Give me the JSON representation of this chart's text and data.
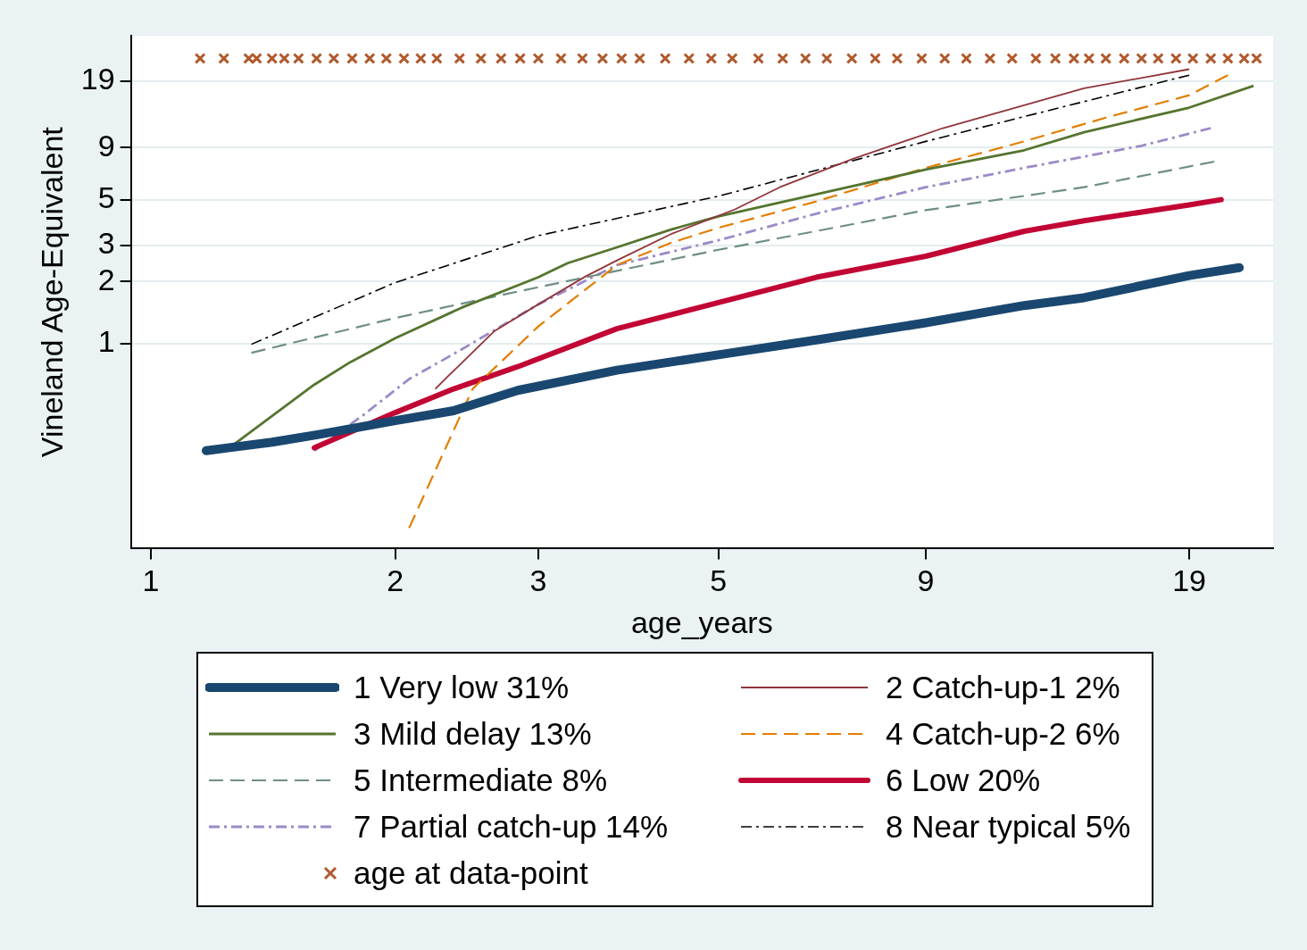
{
  "chart_data": {
    "type": "line",
    "xlabel": "age_years",
    "ylabel": "Vineland Age-Equivalent",
    "log": "xy",
    "xlim": [
      0.945,
      24.1
    ],
    "xticks": [
      1,
      2,
      3,
      5,
      9,
      19
    ],
    "ylim": [
      0.1,
      31.6
    ],
    "yticks": [
      1,
      2,
      3,
      5,
      9,
      19
    ],
    "grid": "y",
    "legend": "bottom",
    "series": [
      {
        "name": "1 Very low 31%",
        "color": "#1a476f",
        "line_style": "solid",
        "x": [
          1.17,
          1.41,
          1.61,
          2,
          2.36,
          2.83,
          3.75,
          5,
          6.6,
          9,
          11.9,
          14.1,
          19,
          21.9
        ],
        "values": [
          0.3,
          0.33,
          0.36,
          0.42,
          0.47,
          0.59,
          0.74,
          0.88,
          1.04,
          1.26,
          1.53,
          1.67,
          2.14,
          2.34
        ]
      },
      {
        "name": "2 Catch-up-1 2%",
        "color": "#90353b",
        "line_style": "solid",
        "x": [
          2.24,
          2.33,
          2.65,
          3,
          3.43,
          3.75,
          4.37,
          5.24,
          5.95,
          7.31,
          9.45,
          14.1,
          19
        ],
        "values": [
          0.6,
          0.7,
          1.15,
          1.55,
          2.12,
          2.54,
          3.41,
          4.5,
          5.77,
          7.92,
          11.2,
          17.5,
          21.7
        ]
      },
      {
        "name": "3 Mild delay 13%",
        "color": "#55752f",
        "line_style": "solid",
        "x": [
          1.25,
          1.59,
          1.76,
          2,
          2.42,
          3,
          3.26,
          3.75,
          4.37,
          5,
          6.6,
          9,
          11.9,
          14.1,
          19,
          22.8
        ],
        "values": [
          0.31,
          0.63,
          0.81,
          1.06,
          1.5,
          2.1,
          2.46,
          2.94,
          3.59,
          4.16,
          5.33,
          7.03,
          8.74,
          10.7,
          14.1,
          18
        ]
      },
      {
        "name": "4 Catch-up-2 6%",
        "color": "#e37e00",
        "line_style": "dashed",
        "x": [
          2.08,
          2.49,
          3,
          3.75,
          4.37,
          5,
          6.6,
          9,
          11.9,
          15,
          19,
          21.2
        ],
        "values": [
          0.126,
          0.6,
          1.21,
          2.41,
          3.09,
          3.66,
          4.92,
          7.17,
          9.65,
          12.6,
          16.2,
          20.3
        ]
      },
      {
        "name": "5 Intermediate 8%",
        "color": "#6e8e84",
        "line_style": "dashed",
        "x": [
          1.33,
          2,
          3,
          5,
          9,
          14.1,
          20.4
        ],
        "values": [
          0.9,
          1.33,
          1.88,
          2.86,
          4.46,
          5.77,
          7.69
        ]
      },
      {
        "name": "6 Low 20%",
        "color": "#c10534",
        "line_style": "solid",
        "x": [
          1.59,
          2,
          2.36,
          2.83,
          3.75,
          5,
          6.6,
          9,
          11.9,
          14.1,
          19,
          20.8
        ],
        "values": [
          0.31,
          0.46,
          0.6,
          0.77,
          1.18,
          1.58,
          2.1,
          2.66,
          3.52,
          3.96,
          4.73,
          5.02
        ]
      },
      {
        "name": "7 Partial catch-up 14%",
        "color": "#9c8ac7",
        "line_style": "dashdot",
        "x": [
          1.59,
          1.83,
          2.08,
          2.42,
          3,
          3.75,
          5,
          6.6,
          9,
          11.9,
          16.6,
          20.2
        ],
        "values": [
          0.3,
          0.45,
          0.67,
          0.94,
          1.55,
          2.41,
          3.18,
          4.29,
          5.77,
          7.17,
          9.19,
          11.2
        ]
      },
      {
        "name": "8 Near typical 5%",
        "color": "#000000",
        "line_style": "dashdot",
        "x": [
          1.33,
          2,
          3,
          5,
          9,
          19
        ],
        "values": [
          0.99,
          1.98,
          3.35,
          5.22,
          9.65,
          20.3
        ]
      },
      {
        "name": "age at data-point",
        "type": "scatter",
        "marker": "cross",
        "color": "#b05a2e",
        "x": [
          1.15,
          1.23,
          1.32,
          1.35,
          1.41,
          1.46,
          1.52,
          1.6,
          1.68,
          1.77,
          1.86,
          1.95,
          2.05,
          2.15,
          2.25,
          2.4,
          2.55,
          2.7,
          2.85,
          3,
          3.2,
          3.4,
          3.6,
          3.8,
          4,
          4.3,
          4.6,
          4.9,
          5.2,
          5.6,
          6,
          6.4,
          6.8,
          7.3,
          7.8,
          8.3,
          8.9,
          9.5,
          10.1,
          10.8,
          11.5,
          12.3,
          13,
          13.7,
          14.3,
          15,
          15.8,
          16.6,
          17.4,
          18.3,
          19.2,
          20.2,
          21.2,
          22.2,
          23
        ],
        "values": [
          24.5,
          24.5,
          24.5,
          24.5,
          24.5,
          24.5,
          24.5,
          24.5,
          24.5,
          24.5,
          24.5,
          24.5,
          24.5,
          24.5,
          24.5,
          24.5,
          24.5,
          24.5,
          24.5,
          24.5,
          24.5,
          24.5,
          24.5,
          24.5,
          24.5,
          24.5,
          24.5,
          24.5,
          24.5,
          24.5,
          24.5,
          24.5,
          24.5,
          24.5,
          24.5,
          24.5,
          24.5,
          24.5,
          24.5,
          24.5,
          24.5,
          24.5,
          24.5,
          24.5,
          24.5,
          24.5,
          24.5,
          24.5,
          24.5,
          24.5,
          24.5,
          24.5,
          24.5,
          24.5,
          24.5
        ]
      }
    ]
  }
}
